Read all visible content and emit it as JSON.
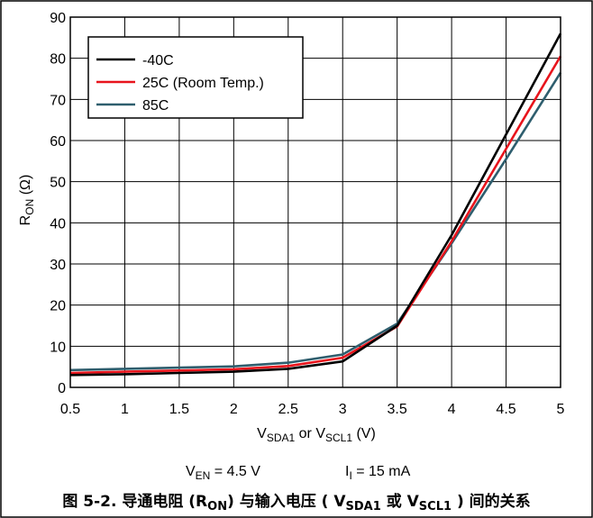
{
  "chart_data": {
    "type": "line",
    "xlabel": {
      "main": "V",
      "sub1": "SDA1",
      "mid": " or V",
      "sub2": "SCL1",
      "tail": " (V)"
    },
    "ylabel": {
      "main": "R",
      "sub": "ON",
      "tail": " (Ω)"
    },
    "xlim": [
      0.5,
      5
    ],
    "ylim": [
      0,
      90
    ],
    "xticks": [
      "0.5",
      "1",
      "1.5",
      "2",
      "2.5",
      "3",
      "3.5",
      "4",
      "4.5",
      "5"
    ],
    "yticks": [
      "0",
      "10",
      "20",
      "30",
      "40",
      "50",
      "60",
      "70",
      "80",
      "90"
    ],
    "xtick_values": [
      0.5,
      1,
      1.5,
      2,
      2.5,
      3,
      3.5,
      4,
      4.5,
      5
    ],
    "ytick_values": [
      0,
      10,
      20,
      30,
      40,
      50,
      60,
      70,
      80,
      90
    ],
    "grid": true,
    "legend_position": "top-left",
    "series": [
      {
        "name": "-40C",
        "color": "#000000",
        "x": [
          0.5,
          1,
          1.5,
          2,
          2.5,
          3,
          3.5,
          4,
          4.5,
          5
        ],
        "y": [
          3.0,
          3.2,
          3.5,
          3.8,
          4.5,
          6.3,
          15.0,
          37.0,
          61.5,
          86.0
        ]
      },
      {
        "name": "25C (Room Temp.)",
        "color": "#e8141c",
        "x": [
          0.5,
          1,
          1.5,
          2,
          2.5,
          3,
          3.5,
          4,
          4.5,
          5
        ],
        "y": [
          3.5,
          3.8,
          4.1,
          4.4,
          5.2,
          7.2,
          14.8,
          35.5,
          58.0,
          80.5
        ]
      },
      {
        "name": "85C",
        "color": "#2e5e6e",
        "x": [
          0.5,
          1,
          1.5,
          2,
          2.5,
          3,
          3.5,
          4,
          4.5,
          5
        ],
        "y": [
          4.2,
          4.5,
          4.8,
          5.1,
          6.0,
          8.0,
          15.5,
          35.0,
          55.5,
          76.5
        ]
      }
    ]
  },
  "conditions": {
    "ven": {
      "main": "V",
      "sub": "EN",
      "tail": " = 4.5 V"
    },
    "il": {
      "main": "I",
      "sub": "I",
      "tail": " = 15 mA"
    }
  },
  "caption": {
    "part1": "图 5-2. 导通电阻 (R",
    "sub1": "ON",
    "part2": ") 与输入电压 ( V",
    "sub2": "SDA1",
    "part3": " 或 V",
    "sub3": "SCL1",
    "part4": " ) 间的关系"
  }
}
